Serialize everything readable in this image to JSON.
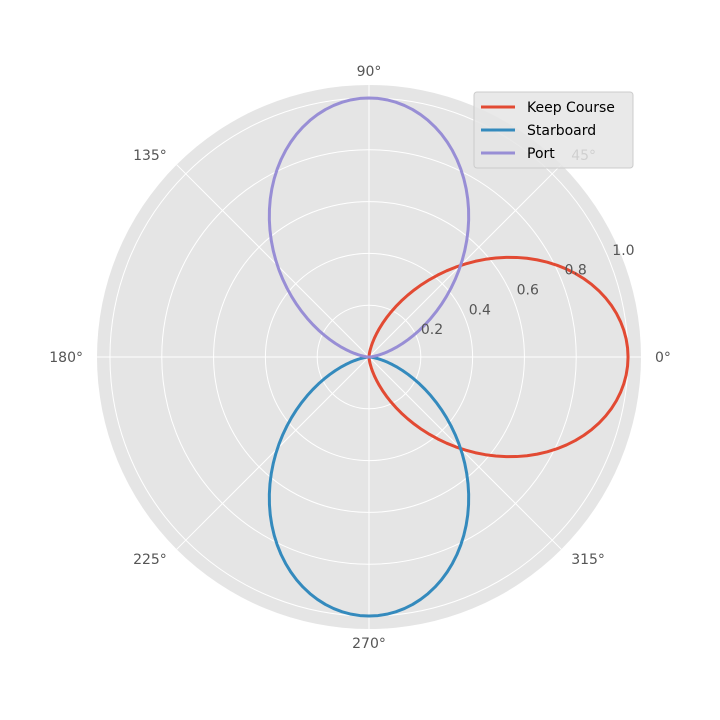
{
  "chart_data": {
    "type": "line",
    "projection": "polar",
    "style": "ggplot",
    "angular_ticks": [
      "0°",
      "45°",
      "90°",
      "135°",
      "180°",
      "225°",
      "270°",
      "315°"
    ],
    "radial_ticks": [
      "0.2",
      "0.4",
      "0.6",
      "0.8",
      "1.0"
    ],
    "radial_tick_values": [
      0.2,
      0.4,
      0.6,
      0.8,
      1.0
    ],
    "rlim": [
      0,
      1.05
    ],
    "grid": true,
    "legend_position": "top-right",
    "series": [
      {
        "name": "Keep Course",
        "color": "#E24A33",
        "center_deg": 0
      },
      {
        "name": "Starboard",
        "color": "#348ABD",
        "center_deg": 270
      },
      {
        "name": "Port",
        "color": "#988ED5",
        "center_deg": 90
      }
    ],
    "curve": {
      "formula": "r = cos²(θ − center), |θ − center| ≤ 90°",
      "theta_deg": [
        0,
        5,
        10,
        15,
        20,
        25,
        30,
        35,
        40,
        45,
        50,
        55,
        60,
        65,
        70,
        75,
        80,
        85,
        90
      ],
      "r": [
        1.0,
        0.992,
        0.97,
        0.933,
        0.883,
        0.821,
        0.75,
        0.671,
        0.587,
        0.5,
        0.413,
        0.329,
        0.25,
        0.179,
        0.117,
        0.067,
        0.03,
        0.008,
        0.0
      ]
    }
  }
}
